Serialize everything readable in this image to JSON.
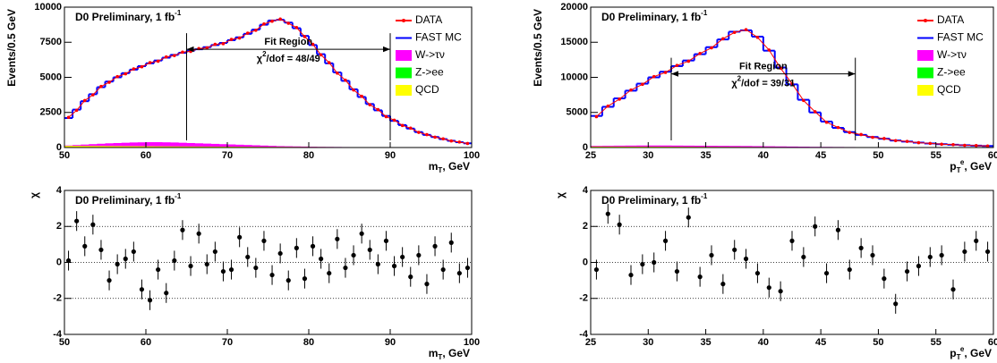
{
  "chart_data": [
    {
      "type": "histogram",
      "title": [
        {
          "text": "D0 Preliminary, 1 fb"
        },
        {
          "text": "-1",
          "shift": "sup"
        }
      ],
      "x_label": [
        {
          "text": "m"
        },
        {
          "text": "T",
          "shift": "sub"
        },
        {
          "text": ", GeV"
        }
      ],
      "y_label": "Events/0.5 GeV",
      "xlim": [
        50,
        100
      ],
      "xticks": [
        50,
        60,
        70,
        80,
        90,
        100
      ],
      "ylim": [
        0,
        10000
      ],
      "yticks": [
        0,
        2500,
        5000,
        7500,
        10000
      ],
      "x": [
        50.5,
        51.5,
        52.5,
        53.5,
        54.5,
        55.5,
        56.5,
        57.5,
        58.5,
        59.5,
        60.5,
        61.5,
        62.5,
        63.5,
        64.5,
        65.5,
        66.5,
        67.5,
        68.5,
        69.5,
        70.5,
        71.5,
        72.5,
        73.5,
        74.5,
        75.5,
        76.5,
        77.5,
        78.5,
        79.5,
        80.5,
        81.5,
        82.5,
        83.5,
        84.5,
        85.5,
        86.5,
        87.5,
        88.5,
        89.5,
        90.5,
        91.5,
        92.5,
        93.5,
        94.5,
        95.5,
        96.5,
        97.5,
        98.5,
        99.5
      ],
      "series": [
        {
          "name": "DATA",
          "color": "#ff0000",
          "style": "points",
          "values": [
            2150,
            2650,
            3350,
            3750,
            4350,
            4650,
            5050,
            5250,
            5600,
            5750,
            6050,
            6150,
            6450,
            6550,
            6800,
            6850,
            7050,
            7100,
            7350,
            7400,
            7700,
            7800,
            8150,
            8350,
            8800,
            9000,
            9150,
            8850,
            8550,
            7900,
            7350,
            6600,
            6050,
            5300,
            4800,
            4100,
            3650,
            3050,
            2700,
            2200,
            1950,
            1570,
            1380,
            1080,
            920,
            740,
            620,
            470,
            390,
            290
          ]
        },
        {
          "name": "FAST MC",
          "color": "#0000ff",
          "style": "step",
          "values": [
            2100,
            2700,
            3300,
            3800,
            4300,
            4700,
            5000,
            5300,
            5550,
            5800,
            6000,
            6200,
            6400,
            6600,
            6750,
            6900,
            7000,
            7150,
            7300,
            7450,
            7650,
            7850,
            8100,
            8400,
            8750,
            9050,
            9100,
            8900,
            8500,
            7950,
            7300,
            6650,
            6000,
            5350,
            4750,
            4150,
            3600,
            3100,
            2650,
            2250,
            1900,
            1600,
            1350,
            1100,
            900,
            750,
            600,
            480,
            380,
            300
          ]
        },
        {
          "name": "W->τν",
          "color": "#ff00ff",
          "style": "fill",
          "values": [
            150,
            180,
            210,
            240,
            270,
            300,
            320,
            340,
            360,
            370,
            380,
            380,
            370,
            360,
            340,
            320,
            300,
            280,
            260,
            240,
            220,
            200,
            180,
            160,
            140,
            120,
            100,
            90,
            80,
            70,
            60,
            50,
            45,
            40,
            35,
            30,
            25,
            20,
            18,
            16,
            14,
            12,
            10,
            9,
            8,
            7,
            6,
            5,
            4,
            4
          ]
        },
        {
          "name": "Z->ee",
          "color": "#00ff00",
          "style": "fill",
          "values": [
            30,
            32,
            34,
            35,
            36,
            36,
            36,
            35,
            34,
            33,
            32,
            31,
            30,
            29,
            28,
            27,
            26,
            25,
            24,
            23,
            22,
            21,
            20,
            19,
            18,
            17,
            16,
            15,
            14,
            13,
            12,
            11,
            10,
            10,
            9,
            9,
            8,
            8,
            7,
            7,
            6,
            6,
            5,
            5,
            5,
            4,
            4,
            4,
            3,
            3
          ]
        },
        {
          "name": "QCD",
          "color": "#ffff00",
          "style": "fill",
          "values": [
            120,
            118,
            115,
            112,
            110,
            107,
            104,
            101,
            98,
            95,
            92,
            89,
            86,
            83,
            80,
            77,
            74,
            71,
            68,
            65,
            62,
            59,
            56,
            53,
            50,
            48,
            46,
            44,
            42,
            40,
            38,
            36,
            34,
            32,
            30,
            28,
            26,
            24,
            22,
            20,
            19,
            18,
            17,
            16,
            15,
            14,
            13,
            12,
            11,
            10
          ]
        }
      ],
      "fit_label": "Fit Region",
      "fit_range": [
        65,
        90
      ],
      "fit_arrow_y": 7000,
      "chi2_label": [
        {
          "text": "χ"
        },
        {
          "text": "2",
          "shift": "sup"
        },
        {
          "text": "/dof = 48/49"
        }
      ]
    },
    {
      "type": "histogram",
      "title": [
        {
          "text": "D0 Preliminary, 1 fb"
        },
        {
          "text": "-1",
          "shift": "sup"
        }
      ],
      "x_label": [
        {
          "text": "p"
        },
        {
          "text": "T",
          "shift": "sub"
        },
        {
          "text": "e",
          "shift": "sup"
        },
        {
          "text": ", GeV"
        }
      ],
      "y_label": "Events/0.5 GeV",
      "xlim": [
        25,
        60
      ],
      "xticks": [
        25,
        30,
        35,
        40,
        45,
        50,
        55,
        60
      ],
      "ylim": [
        0,
        20000
      ],
      "yticks": [
        0,
        5000,
        10000,
        15000,
        20000
      ],
      "x": [
        25.5,
        26.5,
        27.5,
        28.5,
        29.5,
        30.5,
        31.5,
        32.5,
        33.5,
        34.5,
        35.5,
        36.5,
        37.5,
        38.5,
        39.5,
        40.5,
        41.5,
        42.5,
        43.5,
        44.5,
        45.5,
        46.5,
        47.5,
        48.5,
        49.5,
        50.5,
        51.5,
        52.5,
        53.5,
        54.5,
        55.5,
        56.5,
        57.5,
        58.5,
        59.5
      ],
      "series": [
        {
          "name": "DATA",
          "color": "#ff0000",
          "style": "points",
          "values": [
            4400,
            5900,
            6900,
            8200,
            9000,
            10100,
            10700,
            11700,
            12300,
            13400,
            14200,
            15500,
            16400,
            16800,
            15700,
            13900,
            11300,
            9100,
            6700,
            5100,
            3600,
            2850,
            2150,
            1850,
            1450,
            1280,
            980,
            870,
            690,
            590,
            470,
            410,
            320,
            280,
            210
          ]
        },
        {
          "name": "FAST MC",
          "color": "#0000ff",
          "style": "step",
          "values": [
            4500,
            5800,
            7000,
            8100,
            9100,
            10000,
            10800,
            11600,
            12400,
            13300,
            14300,
            15400,
            16500,
            16700,
            15800,
            13800,
            11400,
            9000,
            6800,
            5000,
            3700,
            2800,
            2200,
            1800,
            1500,
            1250,
            1000,
            850,
            700,
            580,
            480,
            400,
            330,
            270,
            220
          ]
        },
        {
          "name": "W->τν",
          "color": "#ff00ff",
          "style": "fill",
          "values": [
            250,
            260,
            270,
            280,
            290,
            290,
            290,
            280,
            270,
            260,
            250,
            240,
            230,
            220,
            200,
            180,
            160,
            140,
            120,
            100,
            90,
            80,
            70,
            60,
            50,
            45,
            40,
            35,
            30,
            25,
            22,
            20,
            18,
            16,
            14
          ]
        },
        {
          "name": "Z->ee",
          "color": "#00ff00",
          "style": "fill",
          "values": [
            20,
            21,
            22,
            23,
            24,
            25,
            26,
            27,
            28,
            29,
            30,
            31,
            32,
            33,
            32,
            30,
            28,
            25,
            22,
            19,
            16,
            14,
            12,
            10,
            9,
            8,
            7,
            6,
            5,
            5,
            4,
            4,
            3,
            3,
            3
          ]
        },
        {
          "name": "QCD",
          "color": "#ffff00",
          "style": "fill",
          "values": [
            150,
            145,
            140,
            135,
            130,
            125,
            120,
            115,
            110,
            105,
            100,
            95,
            90,
            85,
            80,
            75,
            70,
            65,
            60,
            55,
            50,
            45,
            40,
            36,
            32,
            28,
            25,
            22,
            19,
            16,
            14,
            12,
            11,
            10,
            9
          ]
        }
      ],
      "fit_label": "Fit Region",
      "fit_range": [
        32,
        48
      ],
      "fit_arrow_y": 10500,
      "chi2_label": [
        {
          "text": "χ"
        },
        {
          "text": "2",
          "shift": "sup"
        },
        {
          "text": "/dof = 39/31"
        }
      ]
    },
    {
      "type": "scatter",
      "title": [
        {
          "text": "D0 Preliminary, 1 fb"
        },
        {
          "text": "-1",
          "shift": "sup"
        }
      ],
      "x_label": [
        {
          "text": "m"
        },
        {
          "text": "T",
          "shift": "sub"
        },
        {
          "text": ", GeV"
        }
      ],
      "y_label": "χ",
      "xlim": [
        50,
        100
      ],
      "xticks": [
        50,
        60,
        70,
        80,
        90,
        100
      ],
      "ylim": [
        -4,
        4
      ],
      "yticks": [
        -4,
        -2,
        0,
        2,
        4
      ],
      "grid_lines": [
        -2,
        0,
        2
      ],
      "x": [
        50.5,
        51.5,
        52.5,
        53.5,
        54.5,
        55.5,
        56.5,
        57.5,
        58.5,
        59.5,
        60.5,
        61.5,
        62.5,
        63.5,
        64.5,
        65.5,
        66.5,
        67.5,
        68.5,
        69.5,
        70.5,
        71.5,
        72.5,
        73.5,
        74.5,
        75.5,
        76.5,
        77.5,
        78.5,
        79.5,
        80.5,
        81.5,
        82.5,
        83.5,
        84.5,
        85.5,
        86.5,
        87.5,
        88.5,
        89.5,
        90.5,
        91.5,
        92.5,
        93.5,
        94.5,
        95.5,
        96.5,
        97.5,
        98.5,
        99.5
      ],
      "values": [
        0.1,
        2.3,
        0.9,
        2.1,
        0.7,
        -1.0,
        -0.1,
        0.2,
        0.6,
        -1.5,
        -2.1,
        -0.4,
        -1.7,
        0.1,
        1.8,
        -0.2,
        1.6,
        -0.1,
        0.6,
        -0.5,
        -0.4,
        1.4,
        0.3,
        -0.3,
        1.2,
        -0.7,
        0.5,
        -1.0,
        0.8,
        -0.9,
        0.9,
        0.2,
        -0.6,
        1.3,
        -0.3,
        0.4,
        1.6,
        0.7,
        -0.1,
        1.2,
        -0.2,
        0.3,
        -0.8,
        0.4,
        -1.2,
        0.9,
        -0.4,
        1.1,
        -0.6,
        -0.3
      ],
      "error": 0.55,
      "color": "#000000"
    },
    {
      "type": "scatter",
      "title": [
        {
          "text": "D0 Preliminary, 1 fb"
        },
        {
          "text": "-1",
          "shift": "sup"
        }
      ],
      "x_label": [
        {
          "text": "p"
        },
        {
          "text": "T",
          "shift": "sub"
        },
        {
          "text": "e",
          "shift": "sup"
        },
        {
          "text": ", GeV"
        }
      ],
      "y_label": "χ",
      "xlim": [
        25,
        60
      ],
      "xticks": [
        25,
        30,
        35,
        40,
        45,
        50,
        55,
        60
      ],
      "ylim": [
        -4,
        4
      ],
      "yticks": [
        -4,
        -2,
        0,
        2,
        4
      ],
      "grid_lines": [
        -2,
        0,
        2
      ],
      "x": [
        25.5,
        26.5,
        27.5,
        28.5,
        29.5,
        30.5,
        31.5,
        32.5,
        33.5,
        34.5,
        35.5,
        36.5,
        37.5,
        38.5,
        39.5,
        40.5,
        41.5,
        42.5,
        43.5,
        44.5,
        45.5,
        46.5,
        47.5,
        48.5,
        49.5,
        50.5,
        51.5,
        52.5,
        53.5,
        54.5,
        55.5,
        56.5,
        57.5,
        58.5,
        59.5
      ],
      "values": [
        -0.4,
        2.7,
        2.1,
        -0.7,
        -0.1,
        0.0,
        1.2,
        -0.5,
        2.5,
        -0.8,
        0.4,
        -1.2,
        0.7,
        0.2,
        -0.6,
        -1.4,
        -1.6,
        1.2,
        0.3,
        2.0,
        -0.6,
        1.8,
        -0.4,
        0.8,
        0.4,
        -0.9,
        -2.3,
        -0.5,
        -0.2,
        0.3,
        0.4,
        -1.5,
        0.6,
        1.2,
        0.6
      ],
      "error": 0.55,
      "color": "#000000"
    }
  ]
}
